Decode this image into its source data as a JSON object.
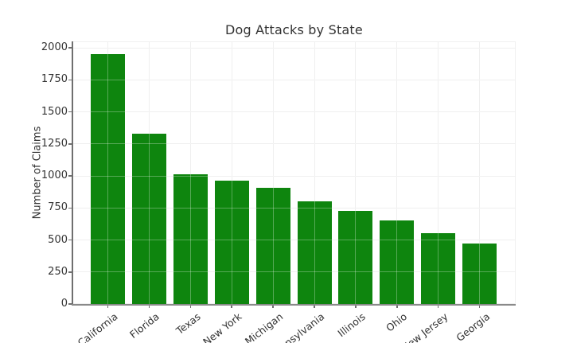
{
  "figure": {
    "title": "Dog Attacks by State"
  },
  "chart_data": {
    "type": "bar",
    "title": "Dog Attacks by State",
    "xlabel": "",
    "ylabel": "Number of Claims",
    "categories": [
      "California",
      "Florida",
      "Texas",
      "New York",
      "Michigan",
      "Pennsylvania",
      "Illinois",
      "Ohio",
      "New Jersey",
      "Georgia"
    ],
    "values": [
      1950,
      1330,
      1010,
      965,
      905,
      800,
      725,
      655,
      550,
      475
    ],
    "ylim": [
      0,
      2050
    ],
    "yticks": [
      0,
      250,
      500,
      750,
      1000,
      1250,
      1500,
      1750,
      2000
    ],
    "ytick_labels": [
      "0",
      "250",
      "500",
      "750",
      "1000",
      "1250",
      "1500",
      "1750",
      "2000"
    ],
    "bar_color": "#0e850e",
    "grid": "both",
    "grid_over_bars": true,
    "legend_position": "none"
  }
}
